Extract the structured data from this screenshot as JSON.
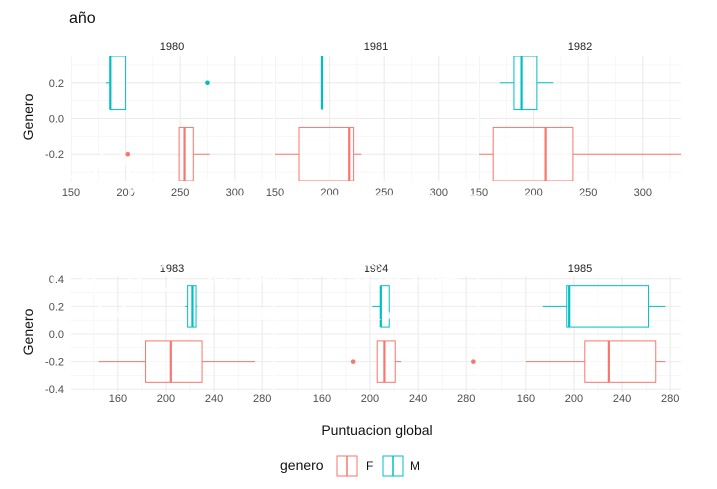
{
  "chart_data": {
    "type": "boxplot",
    "title": "año",
    "xlabel": "Puntuacion global",
    "ylabel": "Genero",
    "legend": {
      "title": "genero",
      "position": "bottom",
      "entries": [
        "F",
        "M"
      ]
    },
    "colors": {
      "F": "#F8766D",
      "M": "#00BFC4"
    },
    "grid": true,
    "watermark": {
      "line1": "UNIVERSIDAD",
      "line2": "CENTRAL",
      "line3": "Vigilada Mineducación"
    },
    "rows": [
      {
        "ylim": [
          -0.35,
          0.35
        ],
        "yticks": [
          -0.2,
          0.0,
          0.2
        ],
        "ytick_labels": [
          "-0.2",
          "0.0",
          "0.2"
        ],
        "xlim": [
          150,
          335
        ],
        "xticks": [
          150,
          200,
          250,
          300
        ],
        "xtick_labels": [
          "150",
          "200",
          "250",
          "300"
        ],
        "panels": [
          {
            "label": "1980",
            "F": {
              "min": 249,
              "q1": 249,
              "median": 254,
              "q3": 262,
              "max": 277,
              "outliers": [
                202
              ]
            },
            "M": {
              "min": 182,
              "q1": 186,
              "median": 186,
              "q3": 200,
              "max": 200,
              "outliers": [
                275
              ]
            }
          },
          {
            "label": "1981",
            "F": {
              "min": 120,
              "q1": 172,
              "median": 218,
              "q3": 222,
              "max": 229,
              "outliers": []
            },
            "M": {
              "min": 193,
              "q1": 193,
              "median": 193,
              "q3": 193,
              "max": 193,
              "outliers": []
            }
          },
          {
            "label": "1982",
            "F": {
              "min": 145,
              "q1": 163,
              "median": 211,
              "q3": 236,
              "max": 335,
              "outliers": []
            },
            "M": {
              "min": 169,
              "q1": 182,
              "median": 189,
              "q3": 203,
              "max": 218,
              "outliers": []
            }
          }
        ]
      },
      {
        "ylim": [
          -0.42,
          0.42
        ],
        "yticks": [
          -0.4,
          -0.2,
          0.0,
          0.2,
          0.4
        ],
        "ytick_labels": [
          "-0.4",
          "-0.2",
          "0.0",
          "0.2",
          "0.4"
        ],
        "xlim": [
          121,
          289
        ],
        "xticks": [
          160,
          200,
          240,
          280
        ],
        "xtick_labels": [
          "160",
          "200",
          "240",
          "280"
        ],
        "panels": [
          {
            "label": "1983",
            "F": {
              "min": 144,
              "q1": 183,
              "median": 204,
              "q3": 230,
              "max": 274,
              "outliers": []
            },
            "M": {
              "min": 216,
              "q1": 218,
              "median": 222,
              "q3": 225,
              "max": 226,
              "outliers": []
            }
          },
          {
            "label": "1984",
            "F": {
              "min": 206,
              "q1": 206,
              "median": 212,
              "q3": 221,
              "max": 226,
              "outliers": [
                186,
                286
              ]
            },
            "M": {
              "min": 202,
              "q1": 209,
              "median": 209,
              "q3": 216,
              "max": 216,
              "outliers": []
            }
          },
          {
            "label": "1985",
            "F": {
              "min": 160,
              "q1": 209,
              "median": 229,
              "q3": 268,
              "max": 276,
              "outliers": []
            },
            "M": {
              "min": 174,
              "q1": 194,
              "median": 196,
              "q3": 262,
              "max": 276,
              "outliers": []
            }
          }
        ]
      }
    ]
  }
}
